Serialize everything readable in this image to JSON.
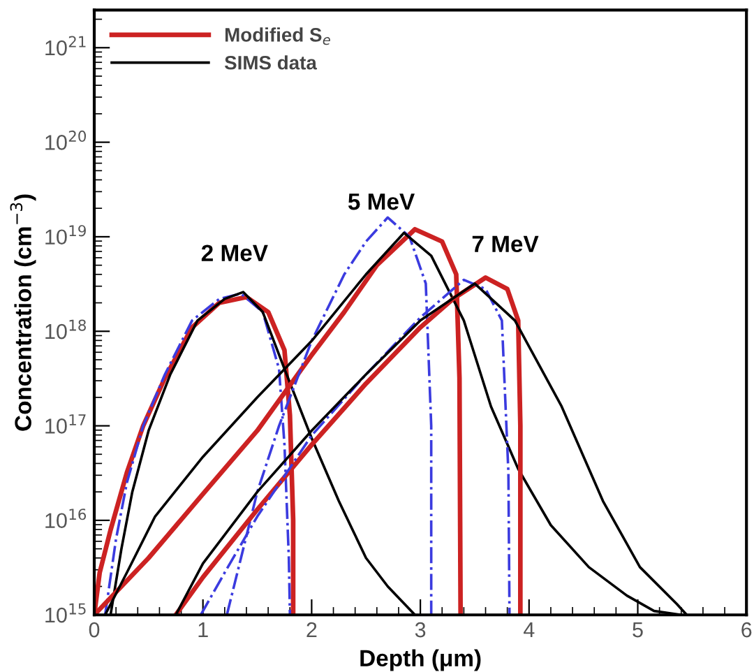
{
  "chart_data": {
    "type": "line",
    "xlabel": "Depth (μm)",
    "ylabel": "Concentration (cm$^{−3}$)",
    "log": "y",
    "xlim": [
      0,
      6
    ],
    "xticks": [
      0,
      1,
      2,
      3,
      4,
      5,
      6
    ],
    "ylim": [
      1000000000000000.0,
      2.5e+21
    ],
    "yticks": [
      {
        "value": 1000000000000000.0,
        "label": "10$^{15}$"
      },
      {
        "value": 1e+16,
        "label": "10$^{16}$"
      },
      {
        "value": 1e+17,
        "label": "10$^{17}$"
      },
      {
        "value": 1e+18,
        "label": "10$^{18}$"
      },
      {
        "value": 1e+19,
        "label": "10$^{19}$"
      },
      {
        "value": 1e+20,
        "label": "10$^{20}$"
      },
      {
        "value": 1e+21,
        "label": "10$^{21}$"
      }
    ],
    "grid": false,
    "legend": "top left",
    "marker": "none",
    "annotations": [
      "2 MeV",
      "5 MeV",
      "7 MeV"
    ],
    "series": [
      {
        "name": "Modified S$_{e}$",
        "color": "#cc2222",
        "line_style": "solid",
        "x": [
          0,
          0.05,
          0.15,
          0.3,
          0.45,
          0.65,
          0.9,
          1.15,
          1.4,
          1.6,
          1.75,
          1.8,
          1.83,
          1.83
        ],
        "values": [
          1000000000000000.0,
          2800000000000000.0,
          7900000000000000.0,
          3.2e+16,
          1e+17,
          3.2e+17,
          1.1e+18,
          2e+18,
          2.3e+18,
          1.6e+18,
          6.3e+17,
          1.3e+17,
          1e+16,
          1000000000000000.0
        ]
      },
      {
        "color": "#3b3bdf",
        "line_style": "dashdot",
        "x": [
          0.1,
          0.2,
          0.3,
          0.45,
          0.65,
          0.9,
          1.15,
          1.35,
          1.55,
          1.7,
          1.75,
          1.79,
          1.8
        ],
        "values": [
          1000000000000000.0,
          6300000000000000.0,
          2.5e+16,
          1e+17,
          3.5e+17,
          1.3e+18,
          2.2e+18,
          2.5e+18,
          1.6e+18,
          4e+17,
          6.3e+16,
          4000000000000000.0,
          1000000000000000.0
        ]
      },
      {
        "name": "SIMS data",
        "color": "#000000",
        "line_style": "solid",
        "x": [
          0.15,
          0.25,
          0.35,
          0.5,
          0.7,
          0.95,
          1.2,
          1.37,
          1.55,
          1.75,
          2.0,
          2.25,
          2.5,
          2.7,
          2.95
        ],
        "values": [
          1000000000000000.0,
          5000000000000000.0,
          2e+16,
          8.9e+16,
          3.5e+17,
          1.3e+18,
          2.2e+18,
          2.6e+18,
          1.6e+18,
          4e+17,
          7.4e+16,
          1.6e+16,
          4000000000000000.0,
          2000000000000000.0,
          1000000000000000.0
        ]
      },
      {
        "color": "#cc2222",
        "line_style": "solid",
        "x": [
          0,
          0.5,
          1.0,
          1.5,
          2.0,
          2.3,
          2.6,
          2.95,
          3.2,
          3.33,
          3.36,
          3.37
        ],
        "values": [
          1000000000000000.0,
          4000000000000000.0,
          1.9e+16,
          8.9e+16,
          5.6e+17,
          1.6e+18,
          5e+18,
          1.2e+19,
          8.9e+18,
          4e+18,
          3.2e+17,
          1000000000000000.0
        ]
      },
      {
        "color": "#3b3bdf",
        "line_style": "dashdot",
        "x": [
          1.22,
          1.35,
          1.5,
          1.7,
          2.0,
          2.3,
          2.5,
          2.7,
          2.9,
          3.05,
          3.1,
          3.1
        ],
        "values": [
          1000000000000000.0,
          4000000000000000.0,
          2e+16,
          1e+17,
          7.9e+17,
          4e+18,
          8.9e+18,
          1.6e+19,
          1e+19,
          3.2e+18,
          1e+17,
          1000000000000000.0
        ]
      },
      {
        "color": "#000000",
        "line_style": "solid",
        "x": [
          0.1,
          0.3,
          0.56,
          1.0,
          1.5,
          2.0,
          2.5,
          2.85,
          3.1,
          3.4,
          3.65,
          3.9,
          4.2,
          4.55,
          4.9,
          5.15,
          5.4
        ],
        "values": [
          1000000000000000.0,
          2800000000000000.0,
          1.1e+16,
          4.7e+16,
          2e+17,
          7.9e+17,
          4e+18,
          1.1e+19,
          6.3e+18,
          1.3e+18,
          1.6e+17,
          3.5e+16,
          8900000000000000.0,
          3200000000000000.0,
          1600000000000000.0,
          1100000000000000.0,
          1000000000000000.0
        ]
      },
      {
        "color": "#cc2222",
        "line_style": "solid",
        "x": [
          0.75,
          1.0,
          1.5,
          2.0,
          2.5,
          3.0,
          3.3,
          3.6,
          3.8,
          3.9,
          3.92,
          3.92
        ],
        "values": [
          1000000000000000.0,
          2500000000000000.0,
          1.3e+16,
          6.3e+16,
          2.8e+17,
          1.1e+18,
          2.2e+18,
          3.7e+18,
          2.8e+18,
          1.3e+18,
          1e+17,
          1000000000000000.0
        ]
      },
      {
        "color": "#3b3bdf",
        "line_style": "dashdot",
        "x": [
          0.98,
          1.2,
          1.5,
          2.0,
          2.5,
          3.0,
          3.4,
          3.6,
          3.75,
          3.81,
          3.82
        ],
        "values": [
          1000000000000000.0,
          2800000000000000.0,
          1.1e+16,
          7.9e+16,
          3.5e+17,
          1.4e+18,
          3.5e+18,
          2.8e+18,
          1.3e+18,
          3.2e+16,
          1000000000000000.0
        ]
      },
      {
        "color": "#000000",
        "line_style": "solid",
        "x": [
          0.75,
          1.0,
          1.5,
          2.0,
          2.5,
          3.0,
          3.5,
          3.87,
          4.3,
          4.68,
          5.02,
          5.36,
          5.45
        ],
        "values": [
          1000000000000000.0,
          3500000000000000.0,
          2e+16,
          8.9e+16,
          3.5e+17,
          1.3e+18,
          3.2e+18,
          1.3e+18,
          1.6e+17,
          1.6e+16,
          3200000000000000.0,
          1300000000000000.0,
          1000000000000000.0
        ]
      }
    ]
  }
}
